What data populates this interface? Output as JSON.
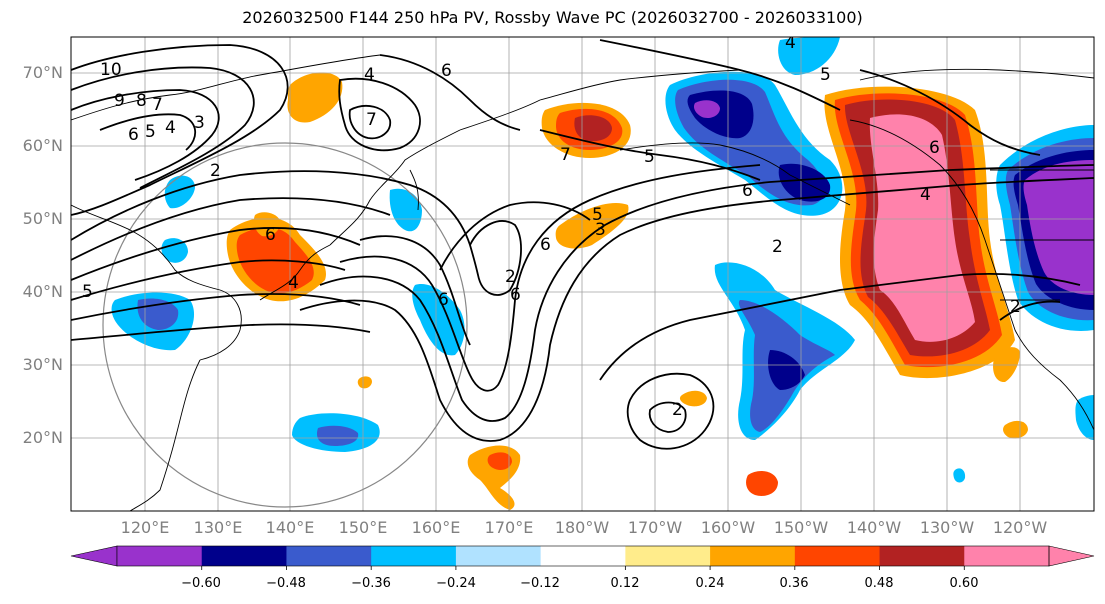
{
  "title": "2026032500 F144 250 hPa PV, Rossby Wave PC (2026032700 - 2026033100)",
  "lat_labels": [
    "70°N",
    "60°N",
    "50°N",
    "40°N",
    "30°N",
    "20°N"
  ],
  "lon_labels": [
    "120°E",
    "130°E",
    "140°E",
    "150°E",
    "160°E",
    "170°E",
    "180°W",
    "170°W",
    "160°W",
    "150°W",
    "140°W",
    "130°W",
    "120°W"
  ],
  "contour_labels": [
    "10",
    "9",
    "8",
    "7",
    "6",
    "5",
    "4",
    "3",
    "2",
    "4",
    "6",
    "7",
    "6",
    "5",
    "5",
    "6",
    "2",
    "6",
    "3",
    "6",
    "5",
    "4",
    "5",
    "2",
    "6",
    "2",
    "2",
    "6",
    "4",
    "7",
    "4"
  ],
  "colorbar": {
    "ticks": [
      "−0.60",
      "−0.48",
      "−0.36",
      "−0.24",
      "−0.12",
      "0.12",
      "0.24",
      "0.36",
      "0.48",
      "0.60"
    ],
    "colors": [
      "#9932cc",
      "#00008b",
      "#3a5bcd",
      "#00bfff",
      "#b0e2ff",
      "#ffffff",
      "#ffec8b",
      "#ffa500",
      "#ff4500",
      "#b22222",
      "#ff82ab"
    ]
  }
}
